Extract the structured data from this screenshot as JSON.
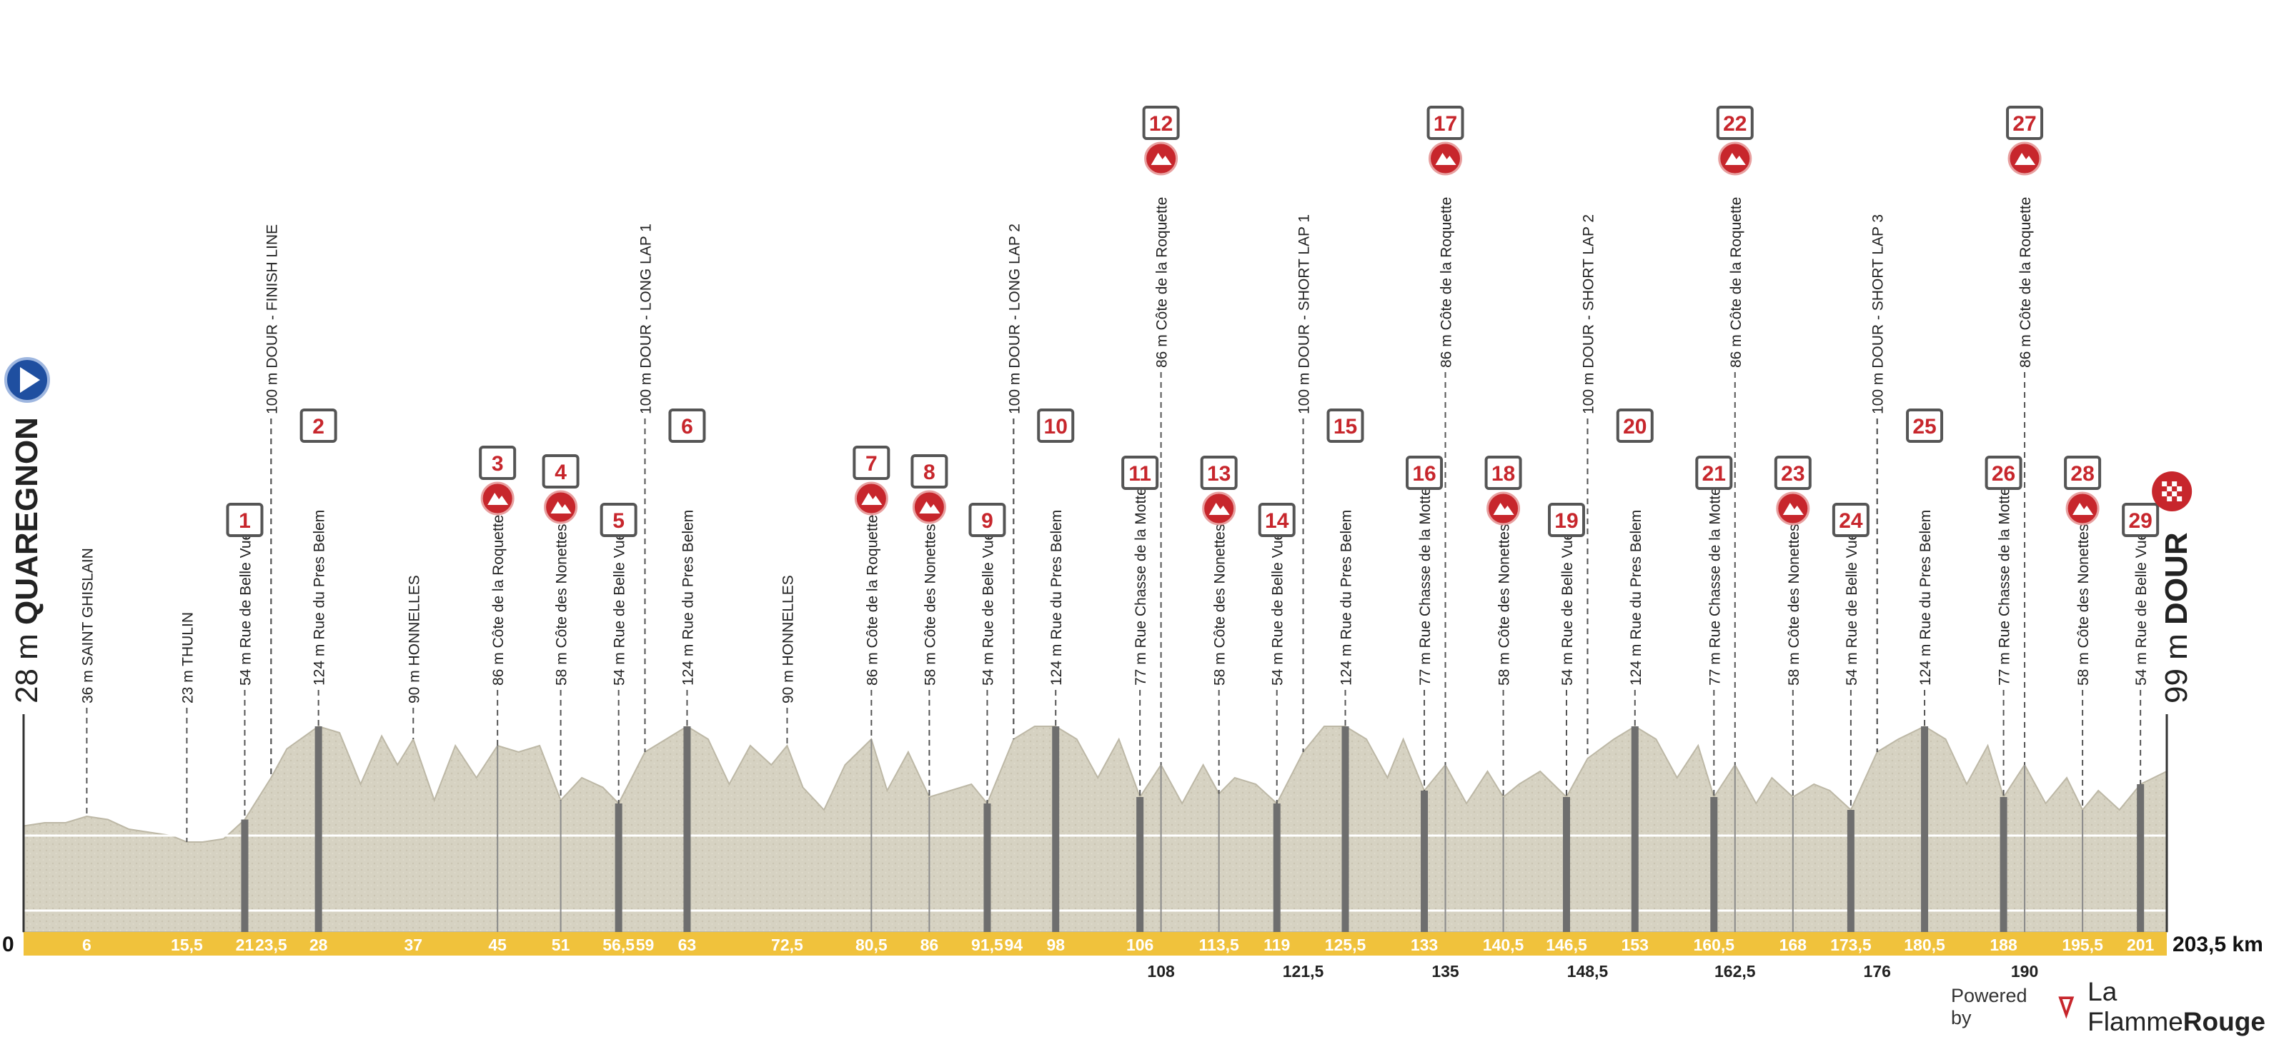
{
  "chart_data": {
    "type": "area",
    "title": "",
    "xlabel": "",
    "ylabel": "",
    "distance_unit": "km",
    "xlim": [
      0,
      203.5
    ],
    "start": {
      "name": "QUAREGNON",
      "altitude": "28 m"
    },
    "finish": {
      "name": "DOUR",
      "altitude": "99 m"
    },
    "axis_zero": "0",
    "axis_end": "203,5 km",
    "profile": {
      "x": [
        0,
        2,
        4,
        6,
        8,
        10,
        12,
        14,
        15.5,
        17,
        19,
        21,
        23.5,
        25,
        28,
        30,
        32,
        34,
        35.5,
        37,
        39,
        41,
        43,
        45,
        47,
        49,
        51,
        53,
        55,
        56.5,
        59,
        61,
        63,
        65,
        67,
        69,
        71,
        72.5,
        74,
        76,
        78,
        80.5,
        82,
        84,
        86,
        88,
        90,
        91.5,
        94,
        96,
        98,
        100,
        102,
        104,
        106,
        108,
        110,
        112,
        113.5,
        115,
        117,
        119,
        121.5,
        123.5,
        125.5,
        127.5,
        129.5,
        131,
        133,
        135,
        137,
        139,
        140.5,
        142,
        144,
        146.5,
        148.5,
        151,
        153,
        155,
        157,
        159,
        160.5,
        162.5,
        164.5,
        166,
        168,
        170,
        171.5,
        173.5,
        176,
        178,
        180.5,
        182.5,
        184.5,
        186.5,
        188,
        190,
        192,
        194,
        195.5,
        197,
        199,
        201,
        203.5
      ],
      "y": [
        33,
        34,
        34,
        36,
        35,
        32,
        31,
        30,
        28,
        28,
        29,
        35,
        48,
        57,
        64,
        62,
        46,
        61,
        52,
        60,
        41,
        58,
        48,
        58,
        56,
        58,
        41,
        48,
        45,
        40,
        56,
        60,
        64,
        60,
        46,
        58,
        52,
        58,
        45,
        38,
        52,
        60,
        44,
        56,
        42,
        44,
        46,
        40,
        60,
        64,
        64,
        60,
        48,
        60,
        42,
        52,
        40,
        52,
        43,
        48,
        46,
        40,
        56,
        64,
        64,
        60,
        48,
        60,
        44,
        52,
        40,
        50,
        42,
        46,
        50,
        42,
        54,
        60,
        64,
        60,
        48,
        58,
        42,
        52,
        40,
        48,
        42,
        46,
        44,
        38,
        56,
        60,
        64,
        60,
        46,
        58,
        42,
        52,
        40,
        48,
        38,
        44,
        38,
        46,
        50
      ]
    },
    "points": [
      {
        "km": "6",
        "label": "36 m SAINT GHISLAIN"
      },
      {
        "km": "15,5",
        "label": "23 m THULIN"
      },
      {
        "km": "21",
        "label": "54 m Rue de Belle Vue",
        "n": "1",
        "kind": "sector"
      },
      {
        "km": "23,5",
        "label": "100 m DOUR - FINISH LINE"
      },
      {
        "km": "28",
        "label": "124 m Rue du Pres Belem",
        "n": "2",
        "kind": "sector"
      },
      {
        "km": "37",
        "label": "90 m HONNELLES"
      },
      {
        "km": "45",
        "label": "86 m Côte de la Roquette",
        "n": "3",
        "kind": "climb"
      },
      {
        "km": "51",
        "label": "58 m Côte des Nonettes",
        "n": "4",
        "kind": "climb"
      },
      {
        "km": "56,5",
        "label": "54 m Rue de Belle Vue",
        "n": "5",
        "kind": "sector"
      },
      {
        "km": "59",
        "label": "100 m DOUR - LONG LAP 1"
      },
      {
        "km": "63",
        "label": "124 m Rue du Pres Belem",
        "n": "6",
        "kind": "sector"
      },
      {
        "km": "72,5",
        "label": "90 m HONNELLES"
      },
      {
        "km": "80,5",
        "label": "86 m Côte de la Roquette",
        "n": "7",
        "kind": "climb"
      },
      {
        "km": "86",
        "label": "58 m Côte des Nonettes",
        "n": "8",
        "kind": "climb"
      },
      {
        "km": "91,5",
        "label": "54 m Rue de Belle Vue",
        "n": "9",
        "kind": "sector"
      },
      {
        "km": "94",
        "label": "100 m DOUR - LONG LAP 2"
      },
      {
        "km": "98",
        "label": "124 m Rue du Pres Belem",
        "n": "10",
        "kind": "sector"
      },
      {
        "km": "106",
        "label": "77 m Rue Chasse de la Motte",
        "n": "11",
        "kind": "sector"
      },
      {
        "km": "108",
        "label": "86 m Côte de la Roquette",
        "n": "12",
        "kind": "climb"
      },
      {
        "km": "113,5",
        "label": "58 m Côte des Nonettes",
        "n": "13",
        "kind": "climb"
      },
      {
        "km": "119",
        "label": "54 m Rue de Belle Vue",
        "n": "14",
        "kind": "sector"
      },
      {
        "km": "121,5",
        "label": "100 m DOUR - SHORT LAP 1"
      },
      {
        "km": "125,5",
        "label": "124 m Rue du Pres Belem",
        "n": "15",
        "kind": "sector"
      },
      {
        "km": "133",
        "label": "77 m Rue Chasse de la Motte",
        "n": "16",
        "kind": "sector"
      },
      {
        "km": "135",
        "label": "86 m Côte de la Roquette",
        "n": "17",
        "kind": "climb"
      },
      {
        "km": "140,5",
        "label": "58 m Côte des Nonettes",
        "n": "18",
        "kind": "climb"
      },
      {
        "km": "146,5",
        "label": "54 m Rue de Belle Vue",
        "n": "19",
        "kind": "sector"
      },
      {
        "km": "148,5",
        "label": "100 m DOUR - SHORT LAP 2"
      },
      {
        "km": "153",
        "label": "124 m Rue du Pres Belem",
        "n": "20",
        "kind": "sector"
      },
      {
        "km": "160,5",
        "label": "77 m Rue Chasse de la Motte",
        "n": "21",
        "kind": "sector"
      },
      {
        "km": "162,5",
        "label": "86 m Côte de la Roquette",
        "n": "22",
        "kind": "climb"
      },
      {
        "km": "168",
        "label": "58 m Côte des Nonettes",
        "n": "23",
        "kind": "climb"
      },
      {
        "km": "173,5",
        "label": "54 m Rue de Belle Vue",
        "n": "24",
        "kind": "sector"
      },
      {
        "km": "176",
        "label": "100 m DOUR - SHORT LAP 3"
      },
      {
        "km": "180,5",
        "label": "124 m Rue du Pres Belem",
        "n": "25",
        "kind": "sector"
      },
      {
        "km": "188",
        "label": "77 m Rue Chasse de la Motte",
        "n": "26",
        "kind": "sector"
      },
      {
        "km": "190",
        "label": "86 m Côte de la Roquette",
        "n": "27",
        "kind": "climb"
      },
      {
        "km": "195,5",
        "label": "58 m Côte des Nonettes",
        "n": "28",
        "kind": "climb"
      },
      {
        "km": "201",
        "label": "54 m Rue de Belle Vue",
        "n": "29",
        "kind": "finish"
      }
    ],
    "colors": {
      "terrain": "#d6d2c2",
      "axis_band": "#f0c23c",
      "badge_red": "#c7262c",
      "sector_bar": "#6e6e6e",
      "start_icon": "#1f4fa0"
    }
  },
  "credit": {
    "powered_by": "Powered by",
    "brand_light": "La Flamme",
    "brand_bold": "Rouge"
  }
}
